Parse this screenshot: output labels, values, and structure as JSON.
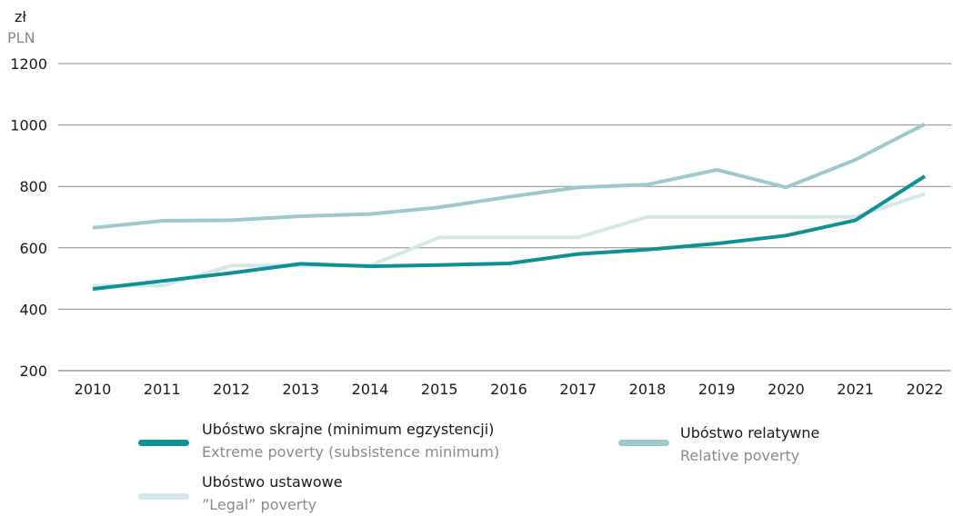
{
  "units": {
    "pl": "zł",
    "en": "PLN"
  },
  "chart_data": {
    "type": "line",
    "x": [
      "2010",
      "2011",
      "2012",
      "2013",
      "2014",
      "2015",
      "2016",
      "2017",
      "2018",
      "2019",
      "2020",
      "2021",
      "2022"
    ],
    "ylim": [
      200,
      1200
    ],
    "yticks": [
      200,
      400,
      600,
      800,
      1000,
      1200
    ],
    "grid": true,
    "series": [
      {
        "id": "relative",
        "name": "Ubóstwo relatywne",
        "name_en": "Relative poverty",
        "color": "#9ec9cc",
        "values": [
          665,
          688,
          690,
          703,
          710,
          732,
          766,
          797,
          806,
          854,
          797,
          887,
          1003
        ]
      },
      {
        "id": "legal",
        "name": "Ubóstwo ustawowe",
        "name_en": "”Legal” poverty",
        "color": "#d3e6e8",
        "values": [
          477,
          477,
          542,
          542,
          542,
          634,
          634,
          634,
          701,
          701,
          701,
          701,
          776
        ]
      },
      {
        "id": "extreme",
        "name": "Ubóstwo skrajne (minimum egzystencji)",
        "name_en": "Extreme poverty (subsistence minimum)",
        "color": "#0e9196",
        "values": [
          466,
          492,
          518,
          548,
          540,
          544,
          549,
          580,
          594,
          614,
          640,
          690,
          833
        ]
      }
    ]
  }
}
